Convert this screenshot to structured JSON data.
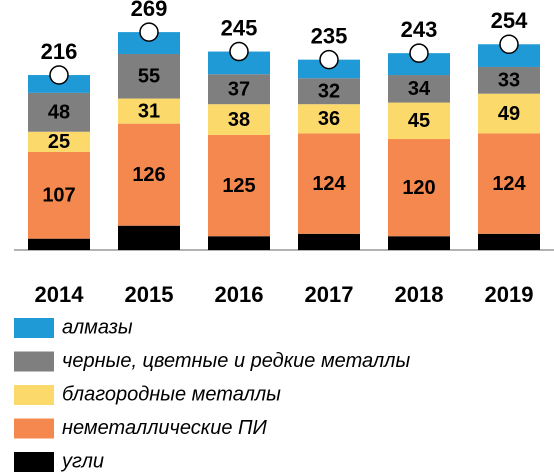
{
  "chart_data": {
    "type": "stacked_bar",
    "categories": [
      "2014",
      "2015",
      "2016",
      "2017",
      "2018",
      "2019"
    ],
    "series": [
      {
        "name": "угли",
        "color": "#000000",
        "values": [
          14,
          30,
          17,
          20,
          17,
          20
        ],
        "show_labels": false
      },
      {
        "name": "неметаллические ПИ",
        "color": "#f4884e",
        "values": [
          107,
          126,
          125,
          124,
          120,
          124
        ],
        "show_labels": true
      },
      {
        "name": "благородные металлы",
        "color": "#fcd96b",
        "values": [
          25,
          31,
          38,
          36,
          45,
          49
        ],
        "show_labels": true
      },
      {
        "name": "черные, цветные и редкие металлы",
        "color": "#7f7f7f",
        "values": [
          48,
          55,
          37,
          32,
          34,
          33
        ],
        "show_labels": true
      },
      {
        "name": "алмазы",
        "color": "#1f9ad6",
        "values": [
          22,
          27,
          28,
          23,
          27,
          28
        ],
        "show_labels": false
      }
    ],
    "totals": [
      216,
      269,
      245,
      235,
      243,
      254
    ],
    "ylim": [
      0,
      300
    ]
  }
}
